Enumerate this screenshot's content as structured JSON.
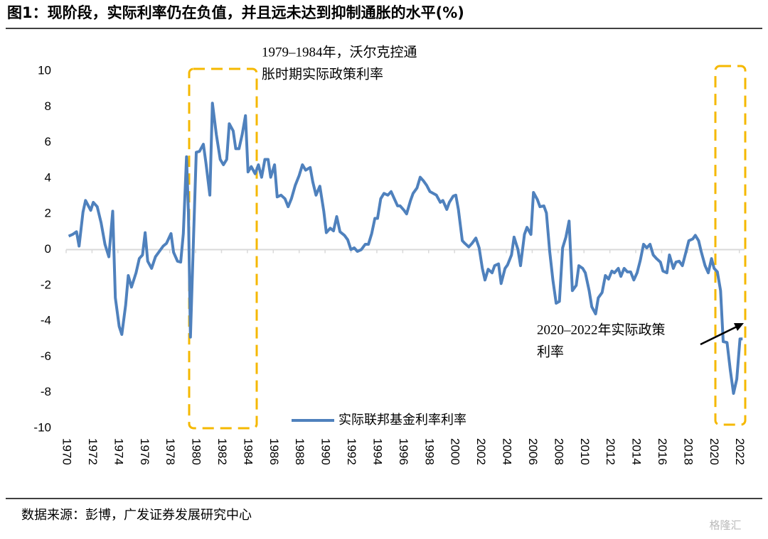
{
  "chart_data": {
    "type": "line",
    "title": "图1：现阶段，实际利率仍在负值，并且远未达到抑制通胀的水平(%)",
    "source": "数据来源：彭博，广发证券发展研究中心",
    "watermark": "格隆汇",
    "annotations": [
      [
        "1979–1984年，沃尔克控通",
        "胀时期实际政策利率"
      ],
      [
        "2020–2022年实际政策",
        "利率"
      ]
    ],
    "x": [
      1970.2,
      1970.5,
      1970.8,
      1971.0,
      1971.3,
      1971.5,
      1971.9,
      1972.1,
      1972.4,
      1972.7,
      1973.0,
      1973.3,
      1973.6,
      1973.8,
      1974.1,
      1974.3,
      1974.6,
      1974.8,
      1975.05,
      1975.4,
      1975.65,
      1975.9,
      1976.1,
      1976.3,
      1976.6,
      1976.9,
      1977.2,
      1977.5,
      1977.75,
      1978.1,
      1978.3,
      1978.6,
      1978.85,
      1979.05,
      1979.3,
      1979.45,
      1979.6,
      1979.85,
      1980.05,
      1980.3,
      1980.6,
      1980.8,
      1981.1,
      1981.3,
      1981.6,
      1981.9,
      1982.15,
      1982.4,
      1982.6,
      1982.9,
      1983.1,
      1983.35,
      1983.6,
      1983.85,
      1984.05,
      1984.3,
      1984.6,
      1984.85,
      1985.1,
      1985.35,
      1985.6,
      1985.8,
      1986.1,
      1986.3,
      1986.6,
      1986.9,
      1987.15,
      1987.4,
      1987.7,
      1988.0,
      1988.25,
      1988.5,
      1988.85,
      1989.05,
      1989.3,
      1989.6,
      1989.9,
      1990.1,
      1990.4,
      1990.65,
      1990.9,
      1991.15,
      1991.5,
      1991.75,
      1992.0,
      1992.25,
      1992.5,
      1992.8,
      1993.1,
      1993.35,
      1993.6,
      1993.85,
      1994.05,
      1994.3,
      1994.55,
      1994.85,
      1995.1,
      1995.35,
      1995.6,
      1995.8,
      1996.1,
      1996.3,
      1996.6,
      1996.8,
      1997.1,
      1997.35,
      1997.6,
      1997.85,
      1998.1,
      1998.35,
      1998.6,
      1998.9,
      1999.1,
      1999.4,
      1999.6,
      1999.9,
      2000.1,
      2000.3,
      2000.6,
      2000.8,
      2001.1,
      2001.35,
      2001.65,
      2001.9,
      2002.15,
      2002.35,
      2002.6,
      2002.9,
      2003.1,
      2003.4,
      2003.6,
      2003.9,
      2004.1,
      2004.4,
      2004.6,
      2004.9,
      2005.1,
      2005.4,
      2005.6,
      2005.9,
      2006.1,
      2006.4,
      2006.6,
      2006.9,
      2007.1,
      2007.35,
      2007.6,
      2007.85,
      2008.1,
      2008.35,
      2008.6,
      2008.85,
      2009.1,
      2009.4,
      2009.6,
      2009.9,
      2010.1,
      2010.4,
      2010.6,
      2010.9,
      2011.1,
      2011.4,
      2011.65,
      2011.9,
      2012.15,
      2012.35,
      2012.65,
      2012.85,
      2013.1,
      2013.35,
      2013.6,
      2013.85,
      2014.1,
      2014.35,
      2014.6,
      2014.85,
      2015.1,
      2015.35,
      2015.6,
      2015.9,
      2016.1,
      2016.4,
      2016.6,
      2016.9,
      2017.1,
      2017.35,
      2017.6,
      2017.85,
      2018.1,
      2018.4,
      2018.6,
      2018.85,
      2019.05,
      2019.35,
      2019.6,
      2019.85,
      2020.05,
      2020.3,
      2020.55,
      2020.75,
      2021.05,
      2021.3,
      2021.55,
      2021.8,
      2022.05,
      2022.25
    ],
    "series": [
      {
        "name": "实际联邦基金利率利率",
        "color": "#4f81bd",
        "values": [
          0.75,
          0.85,
          1.0,
          0.2,
          2.1,
          2.75,
          2.2,
          2.65,
          2.4,
          1.5,
          0.3,
          -0.4,
          2.15,
          -2.7,
          -4.3,
          -4.75,
          -3.1,
          -1.45,
          -2.1,
          -1.3,
          -0.5,
          -0.3,
          0.95,
          -0.65,
          -1.05,
          -0.4,
          -0.1,
          0.2,
          0.35,
          0.9,
          -0.15,
          -0.65,
          -0.7,
          0.9,
          5.2,
          2.05,
          -4.9,
          0.85,
          5.45,
          5.5,
          5.9,
          4.85,
          3.05,
          8.2,
          6.45,
          5.05,
          4.75,
          5.05,
          7.05,
          6.65,
          5.65,
          5.65,
          6.45,
          7.5,
          4.35,
          4.65,
          4.25,
          4.75,
          4.05,
          5.05,
          5.05,
          4.05,
          4.75,
          2.95,
          3.05,
          2.85,
          2.4,
          2.85,
          3.6,
          4.15,
          4.75,
          4.45,
          4.6,
          3.8,
          3.05,
          3.55,
          2.15,
          0.95,
          1.2,
          1.05,
          1.85,
          1.0,
          0.8,
          0.55,
          0.0,
          0.1,
          -0.1,
          0.0,
          0.3,
          0.3,
          0.9,
          1.75,
          1.75,
          2.85,
          3.15,
          3.05,
          3.25,
          2.85,
          2.45,
          2.45,
          2.2,
          2.0,
          2.75,
          3.15,
          3.45,
          4.05,
          3.85,
          3.6,
          3.25,
          3.15,
          3.05,
          2.65,
          2.75,
          2.25,
          2.65,
          3.0,
          3.05,
          2.25,
          0.5,
          0.35,
          0.15,
          0.35,
          0.65,
          0.1,
          -1.05,
          -1.7,
          -1.1,
          -1.3,
          -0.9,
          -0.8,
          -1.9,
          -1.05,
          -0.85,
          -0.3,
          0.7,
          0.0,
          -0.9,
          0.85,
          1.25,
          0.85,
          3.2,
          2.8,
          2.4,
          2.45,
          2.05,
          -0.1,
          -1.7,
          -3.0,
          -2.9,
          0.1,
          0.7,
          1.6,
          -2.3,
          -2.0,
          -0.9,
          -1.05,
          -1.3,
          -2.3,
          -3.2,
          -3.6,
          -2.7,
          -2.4,
          -1.45,
          -1.65,
          -1.2,
          -1.3,
          -1.05,
          -1.5,
          -1.05,
          -1.25,
          -1.25,
          -1.7,
          -1.3,
          -0.6,
          0.3,
          0.1,
          0.3,
          -0.3,
          -0.5,
          -0.7,
          -1.2,
          -1.3,
          -0.3,
          -1.05,
          -0.7,
          -0.65,
          -0.9,
          -0.2,
          0.5,
          0.6,
          0.8,
          0.5,
          -0.1,
          -0.9,
          -1.3,
          -0.5,
          -1.05,
          -1.25,
          -2.3,
          -5.15,
          -5.2,
          -6.75,
          -8.05,
          -7.25,
          -5.0,
          -5.0
        ]
      }
    ],
    "xlim": [
      1970,
      2022.4
    ],
    "xticks": [
      1970,
      1972,
      1974,
      1976,
      1978,
      1980,
      1982,
      1984,
      1986,
      1988,
      1990,
      1992,
      1994,
      1996,
      1998,
      2000,
      2002,
      2004,
      2006,
      2008,
      2010,
      2012,
      2014,
      2016,
      2018,
      2020,
      2022
    ],
    "ylim": [
      -10,
      10
    ],
    "yticks": [
      10,
      8,
      6,
      4,
      2,
      0,
      -2,
      -4,
      -6,
      -8,
      -10
    ],
    "grid": false,
    "axis_color": "#d9d9d9",
    "box_color": "#f5b800"
  }
}
